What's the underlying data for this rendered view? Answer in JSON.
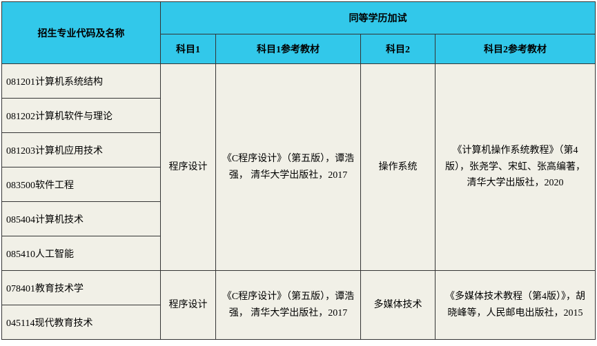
{
  "colors": {
    "header_bg": "#32c8ea",
    "body_bg": "#f1f0e7",
    "border": "#333333",
    "text": "#000000"
  },
  "fontsize": {
    "header": 14,
    "body": 14
  },
  "header": {
    "col_major": "招生专业代码及名称",
    "group_title": "同等学历加试",
    "subject1": "科目1",
    "textbook1": "科目1参考教材",
    "subject2": "科目2",
    "textbook2": "科目2参考教材"
  },
  "groups": [
    {
      "majors": [
        "081201计算机系统结构",
        "081202计算机软件与理论",
        "081203计算机应用技术",
        "083500软件工程",
        "085404计算机技术",
        "085410人工智能"
      ],
      "subject1": "程序设计",
      "textbook1": "《C程序设计》（第五版），谭浩强， 清华大学出版社，2017",
      "subject2": "操作系统",
      "textbook2": "《计算机操作系统教程》（第4版），张尧学、宋虹、张高编著，清华大学出版社，2020"
    },
    {
      "majors": [
        "078401教育技术学",
        "045114现代教育技术"
      ],
      "subject1": "程序设计",
      "textbook1": "《C程序设计》（第五版），谭浩强， 清华大学出版社，2017",
      "subject2": "多媒体技术",
      "textbook2": "《多媒体技术教程（第4版）》，胡晓峰等，人民邮电出版社，2015"
    }
  ]
}
